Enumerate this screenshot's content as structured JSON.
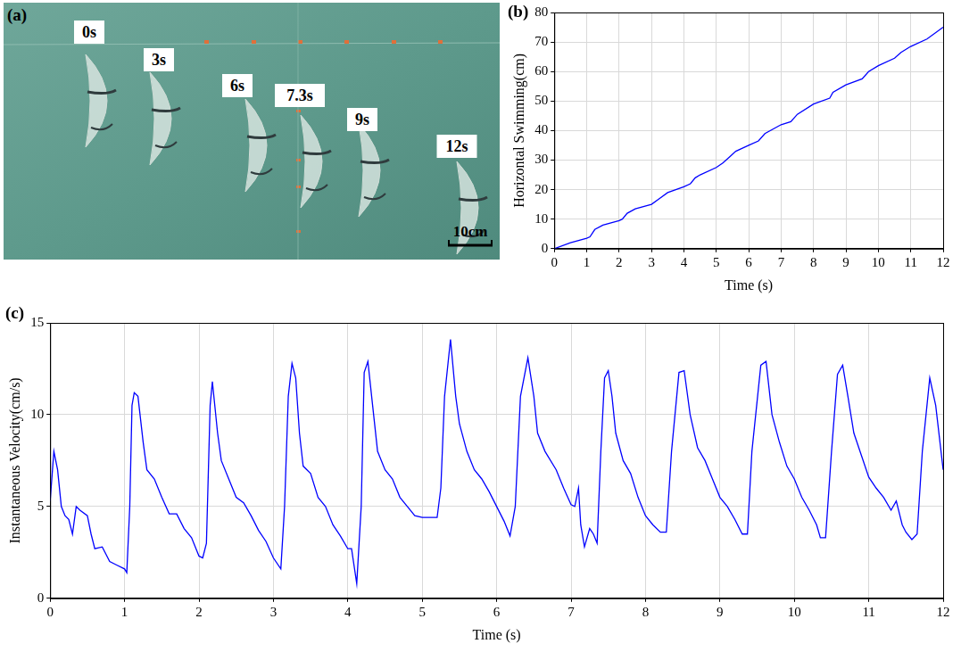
{
  "panel_a": {
    "panel": "(a)",
    "snapshots": [
      "0s",
      "3s",
      "6s",
      "7.3s",
      "9s",
      "12s"
    ],
    "scale_bar": "10cm"
  },
  "chart_data": [
    {
      "panel": "(b)",
      "type": "line",
      "x_label": "Time (s)",
      "y_label": "Horizontal Swimming(cm)",
      "x": [
        0,
        0.5,
        1,
        1.1,
        1.25,
        1.5,
        2,
        2.1,
        2.25,
        2.5,
        3,
        3.25,
        3.5,
        4,
        4.2,
        4.35,
        4.5,
        5,
        5.2,
        5.4,
        5.6,
        6,
        6.3,
        6.5,
        7,
        7.3,
        7.5,
        8,
        8.5,
        8.6,
        9,
        9.5,
        9.7,
        10,
        10.5,
        10.7,
        11,
        11.5,
        12
      ],
      "series": [
        {
          "name": "Horizontal Swimming",
          "color": "#0000ff",
          "values": [
            0,
            2,
            3.5,
            4,
            6.5,
            8,
            9.5,
            10,
            12,
            13.5,
            15,
            17,
            19,
            21,
            22,
            24,
            25,
            27.5,
            29,
            31,
            33,
            35,
            36.5,
            39,
            42,
            43,
            45.5,
            49,
            51,
            53,
            55.5,
            57.5,
            60,
            62,
            64.5,
            66.5,
            68.5,
            71,
            75
          ]
        }
      ],
      "xlim": [
        0,
        12
      ],
      "xticks": [
        0,
        1,
        2,
        3,
        4,
        5,
        6,
        7,
        8,
        9,
        10,
        11,
        12
      ],
      "ylim": [
        0,
        80
      ],
      "yticks": [
        0,
        10,
        20,
        30,
        40,
        50,
        60,
        70,
        80
      ],
      "grid": true
    },
    {
      "panel": "(c)",
      "type": "line",
      "x_label": "Time (s)",
      "y_label": "Instantaneous Velocity(cm/s)",
      "x": [
        0,
        0.05,
        0.1,
        0.15,
        0.2,
        0.25,
        0.3,
        0.35,
        0.4,
        0.5,
        0.55,
        0.6,
        0.7,
        0.8,
        0.9,
        1.0,
        1.03,
        1.07,
        1.1,
        1.13,
        1.18,
        1.25,
        1.3,
        1.4,
        1.5,
        1.6,
        1.7,
        1.8,
        1.9,
        2.0,
        2.05,
        2.1,
        2.15,
        2.18,
        2.25,
        2.3,
        2.4,
        2.5,
        2.6,
        2.7,
        2.8,
        2.9,
        3.0,
        3.1,
        3.15,
        3.2,
        3.25,
        3.3,
        3.35,
        3.4,
        3.5,
        3.6,
        3.7,
        3.8,
        3.9,
        4.0,
        4.05,
        4.12,
        4.18,
        4.22,
        4.27,
        4.32,
        4.4,
        4.5,
        4.6,
        4.7,
        4.8,
        4.9,
        5.0,
        5.1,
        5.2,
        5.25,
        5.3,
        5.38,
        5.45,
        5.5,
        5.6,
        5.7,
        5.8,
        5.9,
        6.0,
        6.1,
        6.18,
        6.25,
        6.32,
        6.42,
        6.5,
        6.55,
        6.65,
        6.8,
        6.9,
        7.0,
        7.05,
        7.1,
        7.13,
        7.18,
        7.25,
        7.3,
        7.35,
        7.4,
        7.45,
        7.5,
        7.55,
        7.6,
        7.7,
        7.8,
        7.9,
        8.0,
        8.1,
        8.2,
        8.28,
        8.35,
        8.45,
        8.52,
        8.6,
        8.7,
        8.8,
        8.9,
        9.0,
        9.1,
        9.2,
        9.3,
        9.37,
        9.43,
        9.55,
        9.62,
        9.7,
        9.8,
        9.9,
        10.0,
        10.1,
        10.2,
        10.3,
        10.35,
        10.42,
        10.5,
        10.58,
        10.65,
        10.72,
        10.8,
        10.9,
        11.0,
        11.1,
        11.2,
        11.3,
        11.37,
        11.45,
        11.5,
        11.58,
        11.65,
        11.72,
        11.82,
        11.9,
        12.0
      ],
      "series": [
        {
          "name": "Instantaneous Velocity",
          "color": "#0000ff",
          "values": [
            5.3,
            8.0,
            7.0,
            5.0,
            4.5,
            4.3,
            3.5,
            5.0,
            4.8,
            4.5,
            3.5,
            2.7,
            2.8,
            2.0,
            1.8,
            1.6,
            1.4,
            5,
            10.5,
            11.2,
            11.0,
            8.5,
            7.0,
            6.5,
            5.5,
            4.6,
            4.6,
            3.8,
            3.3,
            2.3,
            2.2,
            3,
            10.5,
            11.8,
            9,
            7.5,
            6.5,
            5.5,
            5.2,
            4.5,
            3.7,
            3.1,
            2.2,
            1.6,
            5,
            11,
            12.8,
            12,
            9,
            7.2,
            6.8,
            5.5,
            5.0,
            4.0,
            3.4,
            2.7,
            2.7,
            0.8,
            5,
            12.3,
            12.9,
            11,
            8,
            7.0,
            6.5,
            5.5,
            5.0,
            4.5,
            4.4,
            4.4,
            4.4,
            6,
            11,
            14.1,
            11,
            9.5,
            8,
            7,
            6.5,
            5.8,
            5.0,
            4.2,
            3.4,
            5,
            11,
            13.1,
            11,
            9,
            8,
            7.0,
            6.0,
            5.1,
            5.0,
            6.0,
            4,
            2.8,
            3.8,
            3.5,
            3.0,
            8,
            12,
            12.4,
            11,
            9,
            7.5,
            6.8,
            5.5,
            4.5,
            4.0,
            3.6,
            3.6,
            8,
            12.3,
            12.4,
            10,
            8.2,
            7.5,
            6.5,
            5.5,
            5.0,
            4.3,
            3.5,
            3.5,
            8,
            12.7,
            12.9,
            10,
            8.5,
            7.2,
            6.5,
            5.5,
            4.8,
            4.0,
            3.3,
            3.3,
            8,
            12.2,
            12.7,
            11,
            9,
            7.8,
            6.6,
            6.0,
            5.5,
            4.8,
            5.3,
            4.0,
            3.6,
            3.2,
            3.5,
            8,
            12.0,
            10.5,
            7.0
          ]
        }
      ],
      "xlim": [
        0,
        12
      ],
      "xticks": [
        0,
        1,
        2,
        3,
        4,
        5,
        6,
        7,
        8,
        9,
        10,
        11,
        12
      ],
      "ylim": [
        0,
        15
      ],
      "yticks": [
        0,
        5,
        10,
        15
      ],
      "grid": true
    }
  ]
}
